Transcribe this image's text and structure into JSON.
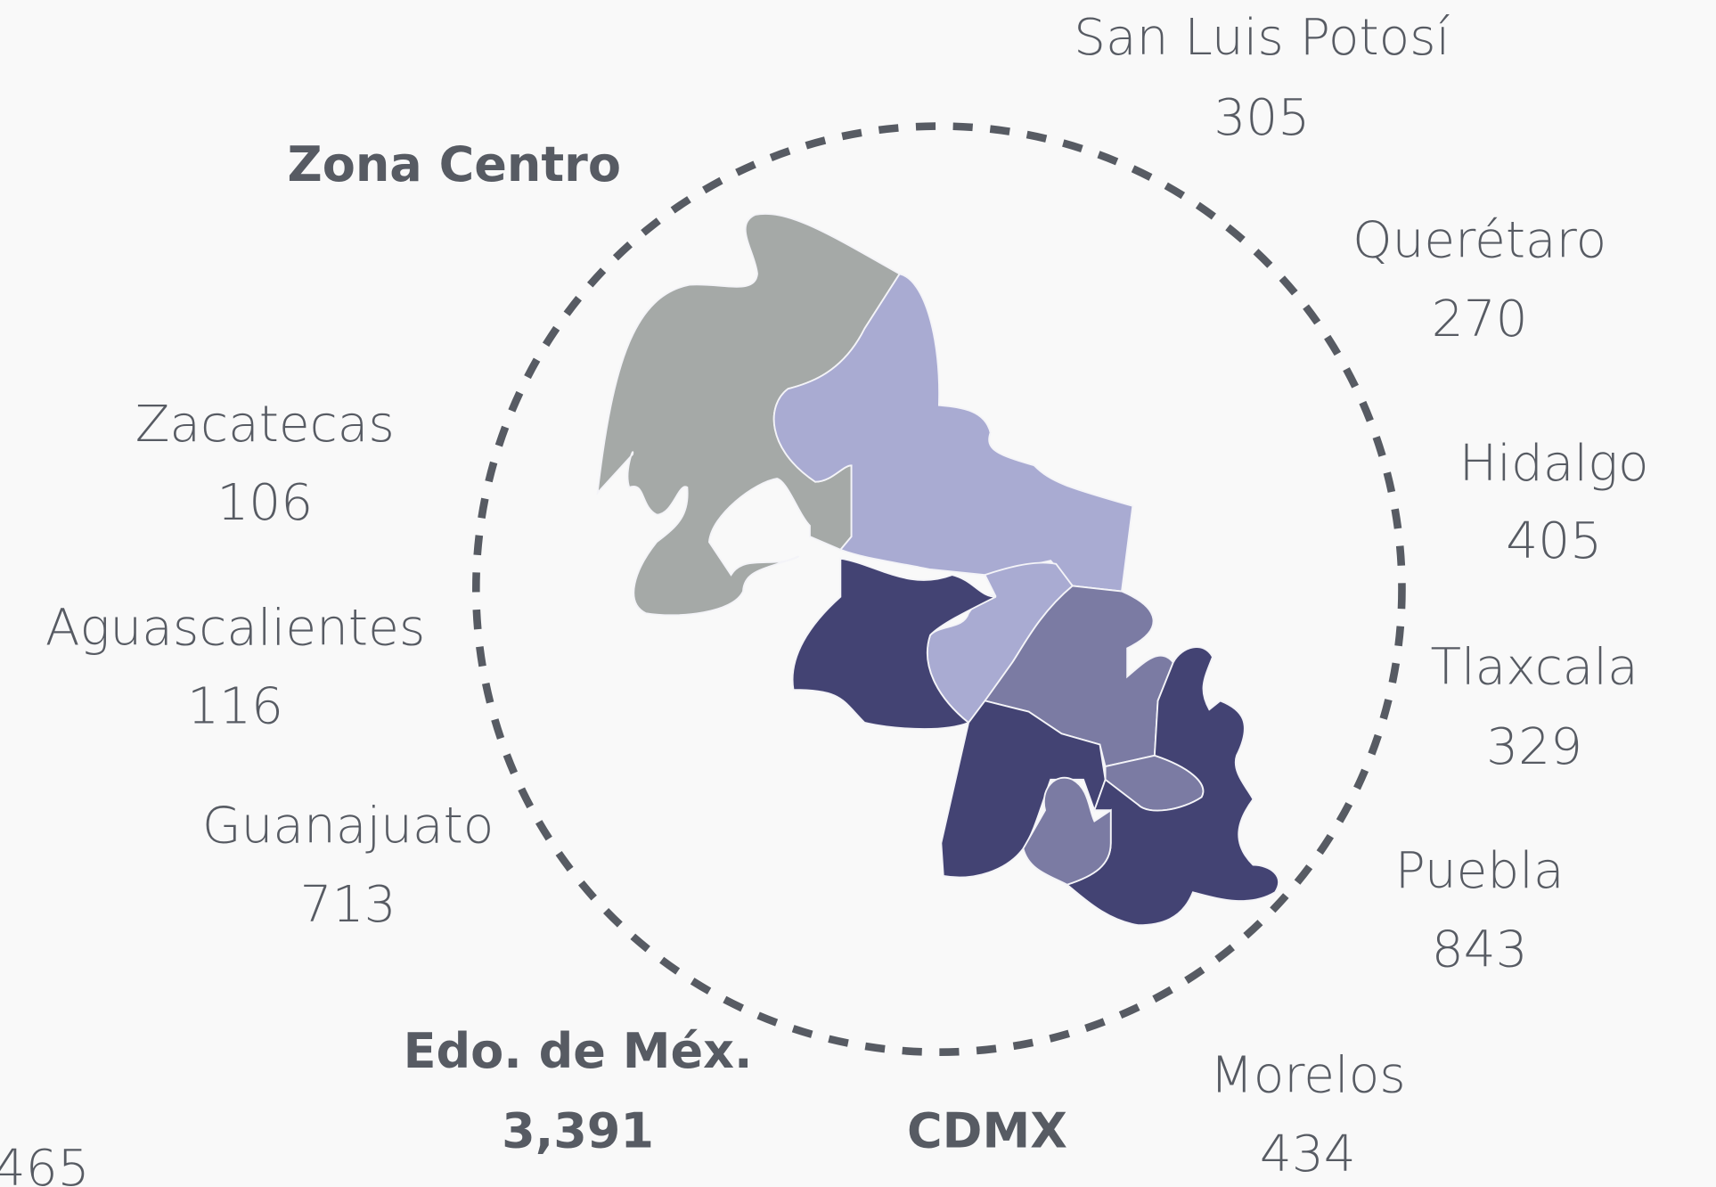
{
  "title": "Zona Centro",
  "regions": [
    {
      "name": "San Luis Potosí",
      "value": "305"
    },
    {
      "name": "Querétaro",
      "value": "270"
    },
    {
      "name": "Hidalgo",
      "value": "405"
    },
    {
      "name": "Tlaxcala",
      "value": "329"
    },
    {
      "name": "Puebla",
      "value": "843"
    },
    {
      "name": "Morelos",
      "value": "434"
    },
    {
      "name": "Zacatecas",
      "value": "106"
    },
    {
      "name": "Aguascalientes",
      "value": "116"
    },
    {
      "name": "Guanajuato",
      "value": "713"
    },
    {
      "name": "Edo. de Méx.",
      "value": "3,391"
    },
    {
      "name": "CDMX"
    },
    {
      "value": "465"
    }
  ]
}
